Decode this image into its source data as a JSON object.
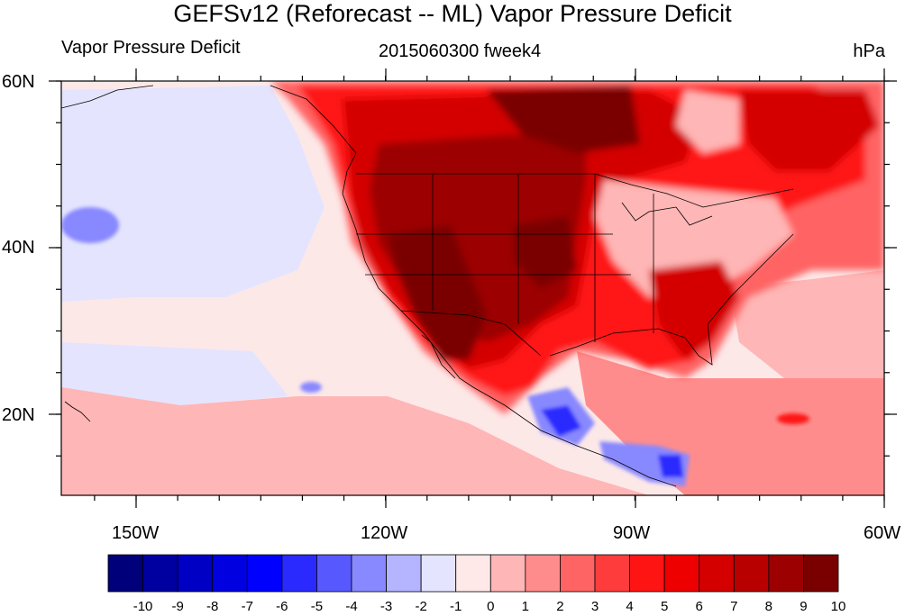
{
  "title": "GEFSv12 (Reforecast -- ML) Vapor Pressure Deficit",
  "left_label": "Vapor Pressure Deficit",
  "center_label": "2015060300 fweek4",
  "right_label": "hPa",
  "lat_labels": [
    "60N",
    "40N",
    "20N"
  ],
  "lon_labels": [
    "150W",
    "120W",
    "90W",
    "60W"
  ],
  "colorbar": {
    "labels": [
      "-10",
      "-9",
      "-8",
      "-7",
      "-6",
      "-5",
      "-4",
      "-3",
      "-2",
      "-1",
      "0",
      "1",
      "2",
      "3",
      "4",
      "5",
      "6",
      "7",
      "8",
      "9",
      "10"
    ],
    "colors": [
      "#00007a",
      "#0000a0",
      "#0000c4",
      "#0000e0",
      "#0000ff",
      "#2a2aff",
      "#5858ff",
      "#8888ff",
      "#b4b4ff",
      "#e4e4ff",
      "#ffe8e8",
      "#ffb6b6",
      "#ff8c8c",
      "#ff6464",
      "#ff3c3c",
      "#ff1414",
      "#ee0000",
      "#d40000",
      "#b80000",
      "#9c0000",
      "#7a0000"
    ]
  },
  "map_colors": {
    "pacific": "#fde8e8",
    "pacific_blue": "#e4e4ff",
    "warm1": "#ffb6b6",
    "warm2": "#ff8c8c",
    "warm3": "#ff6464",
    "hot1": "#ff1414",
    "hot2": "#d40000",
    "hot3": "#9c0000",
    "hot4": "#7a0000",
    "cool1": "#8888ff",
    "cool2": "#2a2aff"
  }
}
